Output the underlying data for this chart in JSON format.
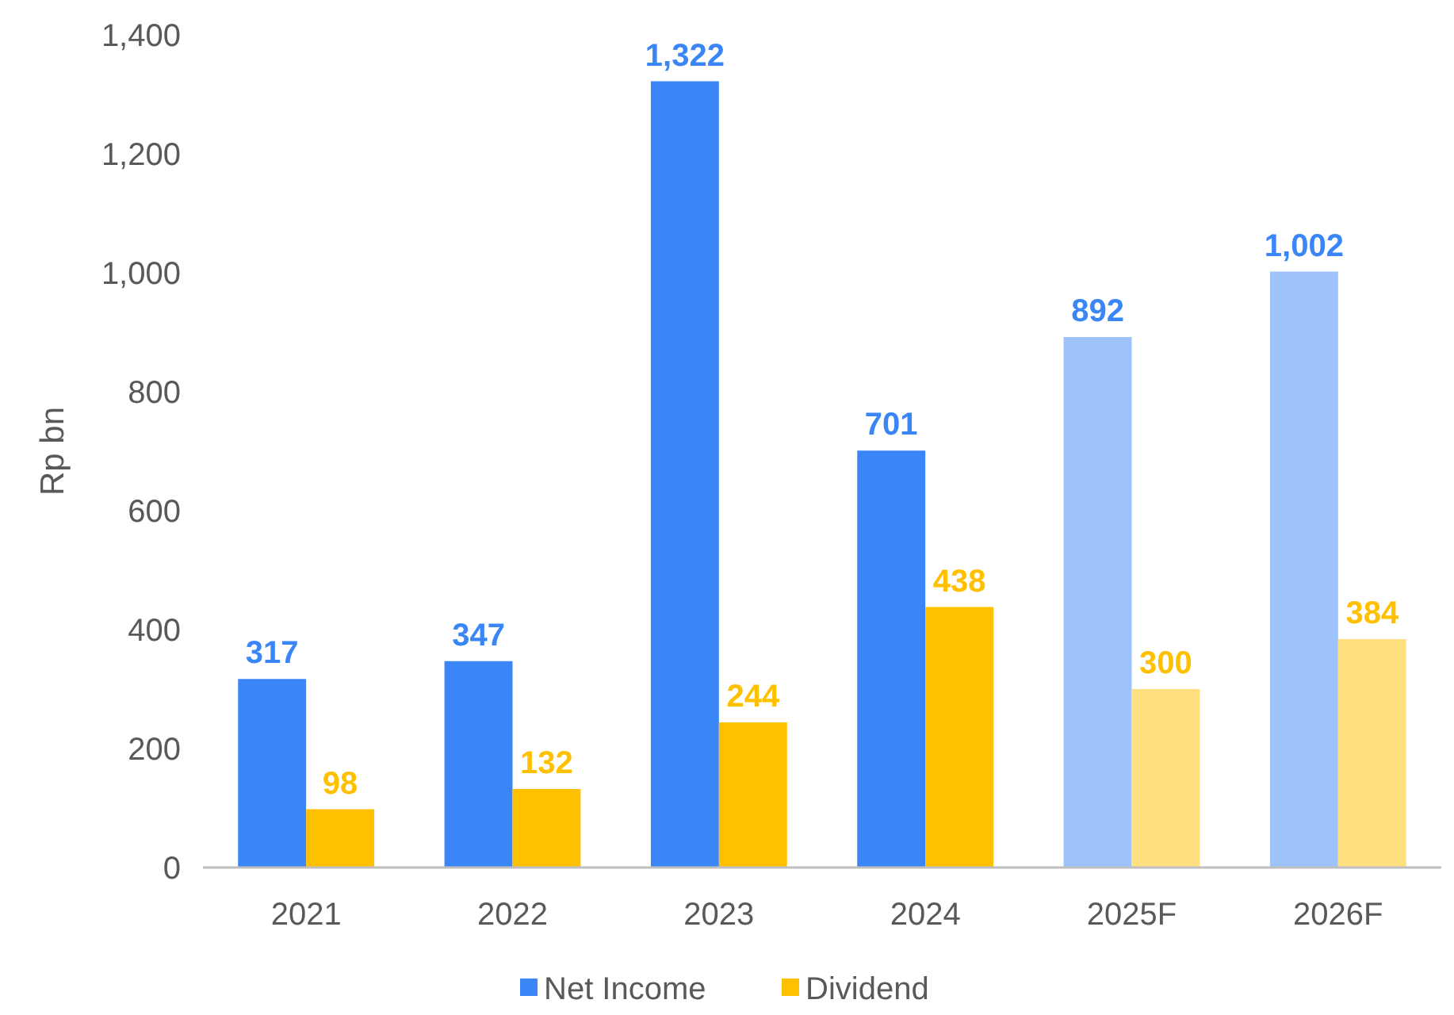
{
  "chart_data": {
    "type": "bar",
    "ylabel": "Rp bn",
    "categories": [
      "2021",
      "2022",
      "2023",
      "2024",
      "2025F",
      "2026F"
    ],
    "series": [
      {
        "name": "Net Income",
        "color": "#3a86f7",
        "colors": [
          "#3a86f7",
          "#3a86f7",
          "#3a86f7",
          "#3a86f7",
          "#9ec3fb",
          "#9ec3fb"
        ],
        "values": [
          317,
          347,
          1322,
          701,
          892,
          1002
        ],
        "value_labels": [
          "317",
          "347",
          "1,322",
          "701",
          "892",
          "1,002"
        ]
      },
      {
        "name": "Dividend",
        "color": "#ffc000",
        "colors": [
          "#ffc000",
          "#ffc000",
          "#ffc000",
          "#ffc000",
          "#ffdf80",
          "#ffdf80"
        ],
        "values": [
          98,
          132,
          244,
          438,
          300,
          384
        ],
        "value_labels": [
          "98",
          "132",
          "244",
          "438",
          "300",
          "384"
        ]
      }
    ],
    "ylim": [
      0,
      1400
    ],
    "yticks": [
      0,
      {
        "value": 200,
        "label": "200"
      },
      {
        "value": 400,
        "label": "400"
      },
      {
        "value": 600,
        "label": "600"
      },
      {
        "value": 800,
        "label": "800"
      },
      {
        "value": 1000,
        "label": "1,000"
      },
      {
        "value": 1200,
        "label": "1,200"
      },
      {
        "value": 1400,
        "label": "1,400"
      }
    ],
    "grid": false,
    "legend": "bottom"
  }
}
